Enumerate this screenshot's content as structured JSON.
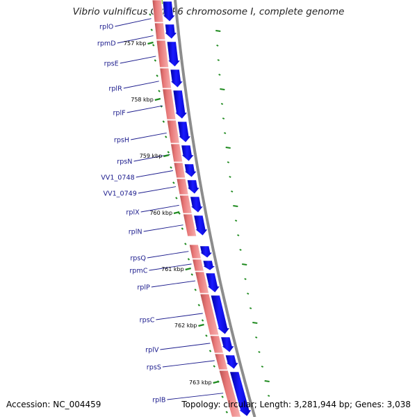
{
  "title": "Vibrio vulnificus CMCP6 chromosome I, complete genome",
  "accession": "Accession: NC_004459",
  "summary": "Topology: circular; Length: 3,281,944 bp; Genes: 3,038",
  "colors": {
    "gene": "#0000ee",
    "cds": "#f08080",
    "backbone": "#8c8c8c",
    "gc": "#1e8a1e",
    "label": "#1a1a8c",
    "rrna": "#9acd32"
  },
  "genes": [
    "rplO",
    "rpmD",
    "rpsE",
    "rplR",
    "rplF",
    "rpsH",
    "rpsN",
    "VV1_0748",
    "VV1_0749",
    "rplX",
    "rplN",
    "rpsQ",
    "rpmC",
    "rplP",
    "rpsC",
    "rplV",
    "rpsS",
    "rplB"
  ],
  "ticks": [
    "757 kbp",
    "758 kbp",
    "759 kbp",
    "760 kbp",
    "761 kbp",
    "762 kbp",
    "763 kbp"
  ]
}
